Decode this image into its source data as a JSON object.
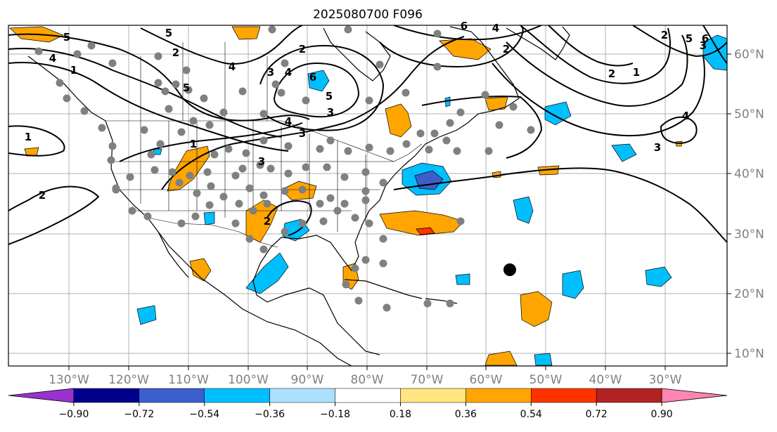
{
  "title": "2025080700 F096",
  "longitude_labels": [
    "130°W",
    "120°W",
    "110°W",
    "100°W",
    "90°W",
    "80°W",
    "70°W",
    "60°W",
    "50°W",
    "40°W",
    "30°W"
  ],
  "latitude_labels": [
    "60°N",
    "50°N",
    "40°N",
    "30°N",
    "20°N",
    "10°N"
  ],
  "colorbar": {
    "ticks": [
      "−0.90",
      "−0.72",
      "−0.54",
      "−0.36",
      "−0.18",
      "0.18",
      "0.36",
      "0.54",
      "0.72",
      "0.90"
    ],
    "colors": [
      "#9932CC",
      "#00008B",
      "#3A5FCD",
      "#00BFFF",
      "#ADDFFF",
      "#FFFFFF",
      "#FFE680",
      "#FFA500",
      "#FF3300",
      "#B22222",
      "#FF85B3"
    ]
  },
  "contour_labels": [
    "5",
    "4",
    "5",
    "3",
    "2",
    "4",
    "6",
    "5",
    "4",
    "3",
    "2",
    "1",
    "2",
    "3",
    "5",
    "4",
    "2",
    "3",
    "1",
    "1",
    "2",
    "1",
    "2",
    "4",
    "6",
    "5",
    "3",
    "2",
    "3",
    "4",
    "6"
  ],
  "marker_color": "#808080",
  "storm_marker_color": "#000000"
}
